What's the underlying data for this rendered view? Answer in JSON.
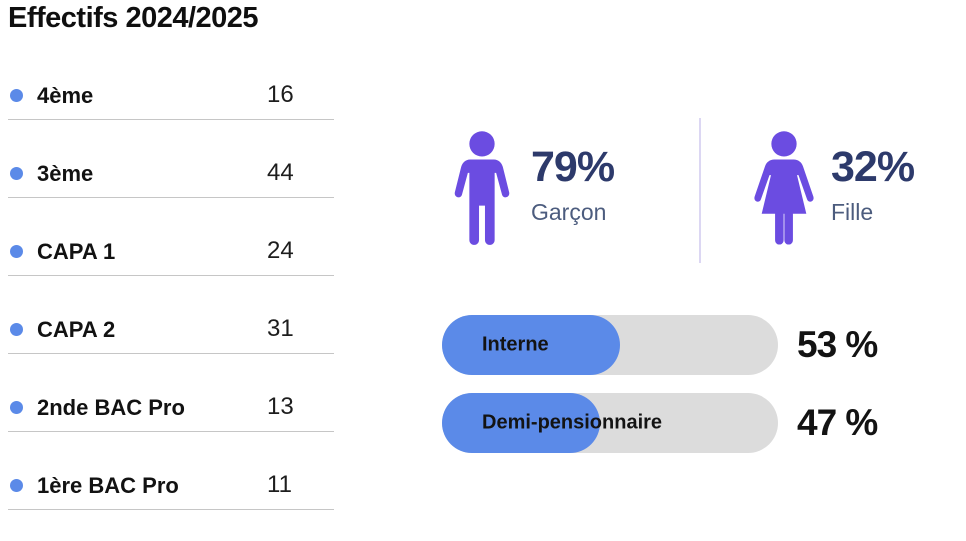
{
  "title": "Effectifs 2024/2025",
  "enrollment": {
    "rows": [
      {
        "label": "4ème",
        "value": "16"
      },
      {
        "label": "3ème",
        "value": "44"
      },
      {
        "label": "CAPA 1",
        "value": "24"
      },
      {
        "label": "CAPA 2",
        "value": "31"
      },
      {
        "label": "2nde BAC Pro",
        "value": "13"
      },
      {
        "label": "1ère BAC Pro",
        "value": "11"
      }
    ]
  },
  "gender": {
    "boy": {
      "percent": "79%",
      "label": "Garçon"
    },
    "girl": {
      "percent": "32%",
      "label": "Fille"
    }
  },
  "boarding": {
    "bars": [
      {
        "label": "Interne",
        "value": 53,
        "percent_label": "53 %"
      },
      {
        "label": "Demi-pensionnaire",
        "value": 47,
        "percent_label": "47 %"
      }
    ]
  },
  "colors": {
    "accent_blue": "#5b8ae8",
    "accent_purple": "#6b4ce1",
    "navy_text": "#2d3a6b",
    "slate_text": "#4c5c7e",
    "track_gray": "#dcdcdc",
    "row_line": "#c6c6c6",
    "divider_lavender": "#dcd7f3"
  },
  "chart_data": [
    {
      "type": "table",
      "title": "Effectifs 2024/2025",
      "categories": [
        "4ème",
        "3ème",
        "CAPA 1",
        "CAPA 2",
        "2nde BAC Pro",
        "1ère BAC Pro"
      ],
      "values": [
        16,
        44,
        24,
        31,
        13,
        11
      ]
    },
    {
      "type": "pictogram",
      "categories": [
        "Garçon",
        "Fille"
      ],
      "values": [
        79,
        32
      ],
      "unit": "%"
    },
    {
      "type": "bar",
      "categories": [
        "Interne",
        "Demi-pensionnaire"
      ],
      "values": [
        53,
        47
      ],
      "unit": "%",
      "xlim": [
        0,
        100
      ],
      "orientation": "horizontal"
    }
  ]
}
